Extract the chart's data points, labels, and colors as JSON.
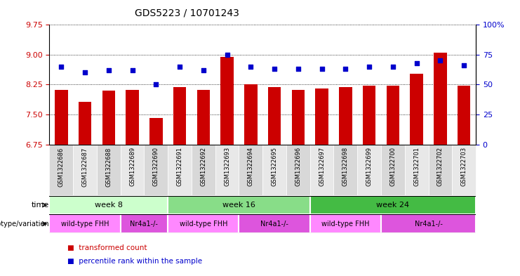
{
  "title": "GDS5223 / 10701243",
  "samples": [
    "GSM1322686",
    "GSM1322687",
    "GSM1322688",
    "GSM1322689",
    "GSM1322690",
    "GSM1322691",
    "GSM1322692",
    "GSM1322693",
    "GSM1322694",
    "GSM1322695",
    "GSM1322696",
    "GSM1322697",
    "GSM1322698",
    "GSM1322699",
    "GSM1322700",
    "GSM1322701",
    "GSM1322702",
    "GSM1322703"
  ],
  "transformed_count": [
    8.12,
    7.82,
    8.1,
    8.12,
    7.42,
    8.18,
    8.12,
    8.95,
    8.25,
    8.18,
    8.12,
    8.15,
    8.18,
    8.22,
    8.22,
    8.52,
    9.05,
    8.22
  ],
  "percentile_rank": [
    65,
    60,
    62,
    62,
    50,
    65,
    62,
    75,
    65,
    63,
    63,
    63,
    63,
    65,
    65,
    68,
    70,
    66
  ],
  "ylim_left": [
    6.75,
    9.75
  ],
  "ylim_right": [
    0,
    100
  ],
  "yticks_left": [
    6.75,
    7.5,
    8.25,
    9.0,
    9.75
  ],
  "yticks_right": [
    0,
    25,
    50,
    75,
    100
  ],
  "bar_color": "#cc0000",
  "dot_color": "#0000cc",
  "plot_bg_color": "#ffffff",
  "sample_col_color_a": "#d8d8d8",
  "sample_col_color_b": "#e8e8e8",
  "time_groups": [
    {
      "label": "week 8",
      "start": 0,
      "end": 5,
      "color": "#ccffcc"
    },
    {
      "label": "week 16",
      "start": 5,
      "end": 11,
      "color": "#88dd88"
    },
    {
      "label": "week 24",
      "start": 11,
      "end": 18,
      "color": "#44bb44"
    }
  ],
  "genotype_groups": [
    {
      "label": "wild-type FHH",
      "start": 0,
      "end": 3,
      "color": "#ff88ff"
    },
    {
      "label": "Nr4a1-/-",
      "start": 3,
      "end": 5,
      "color": "#dd55dd"
    },
    {
      "label": "wild-type FHH",
      "start": 5,
      "end": 8,
      "color": "#ff88ff"
    },
    {
      "label": "Nr4a1-/-",
      "start": 8,
      "end": 11,
      "color": "#dd55dd"
    },
    {
      "label": "wild-type FHH",
      "start": 11,
      "end": 14,
      "color": "#ff88ff"
    },
    {
      "label": "Nr4a1-/-",
      "start": 14,
      "end": 18,
      "color": "#dd55dd"
    }
  ],
  "time_label": "time",
  "genotype_label": "genotype/variation",
  "legend_bar": "transformed count",
  "legend_dot": "percentile rank within the sample",
  "left_tick_color": "#cc0000",
  "right_tick_color": "#0000cc",
  "title_fontsize": 10,
  "tick_fontsize": 8,
  "sample_label_fontsize": 6,
  "bar_width": 0.55,
  "dot_size": 18
}
